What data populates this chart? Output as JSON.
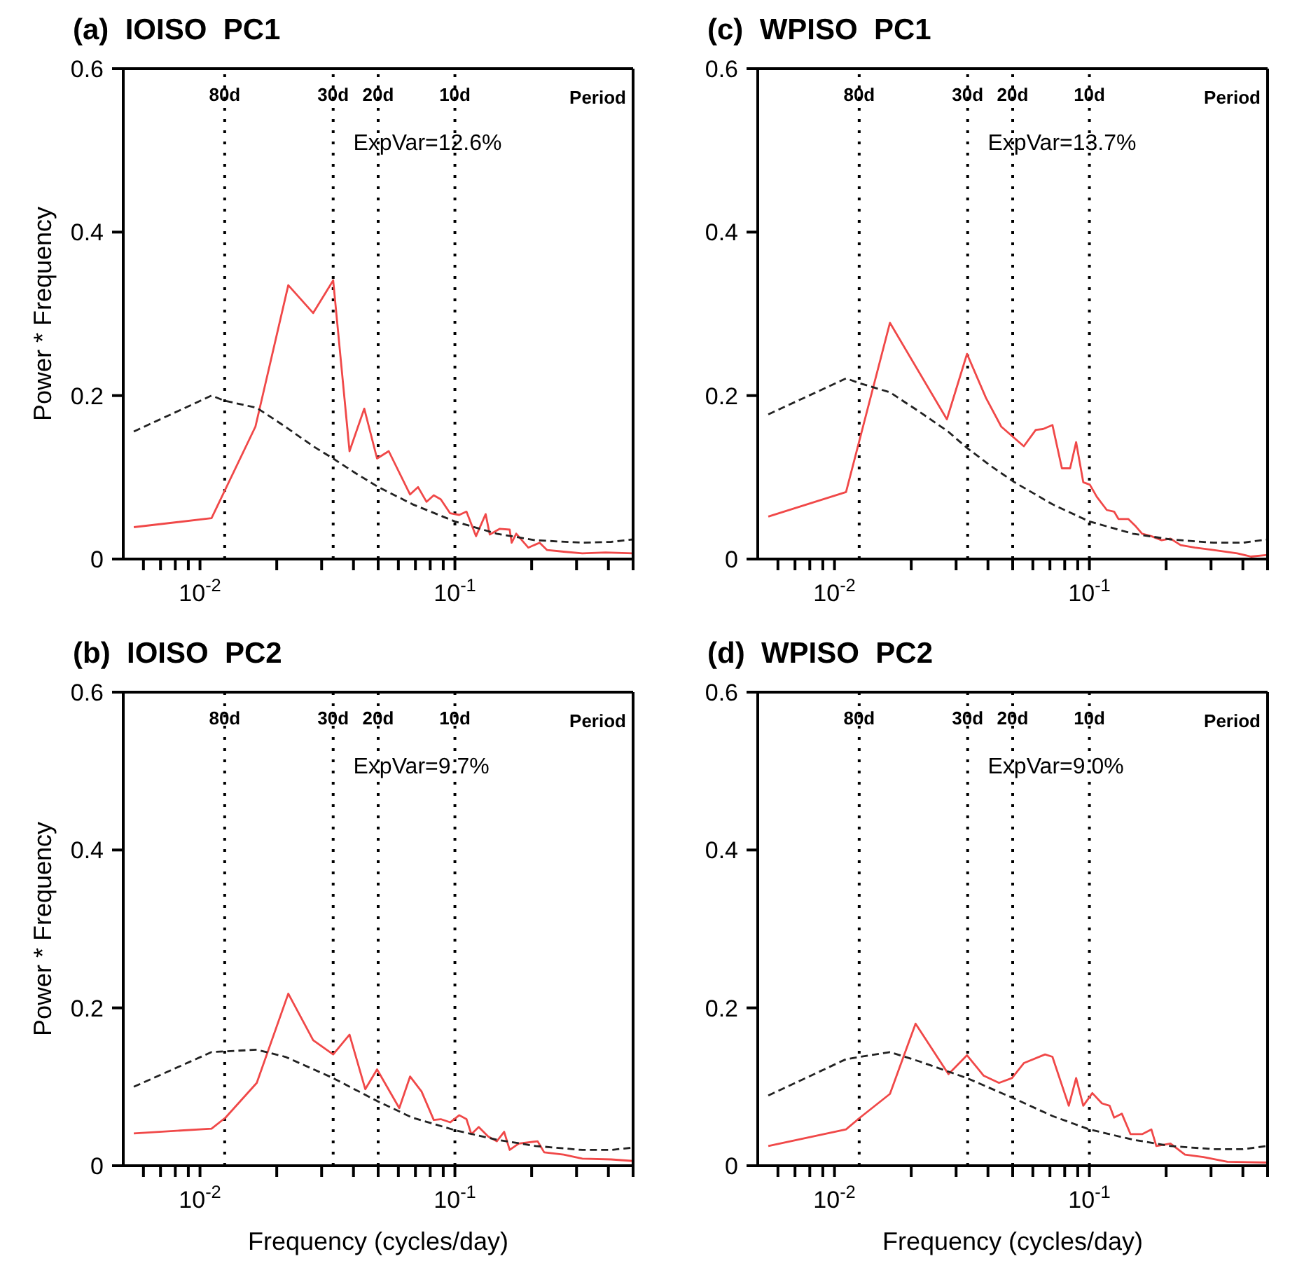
{
  "chart_data": [
    {
      "type": "line",
      "title": "(a)  IOISO  PC1",
      "ylabel": "Power * Frequency",
      "log": "x",
      "marker": "none",
      "xlim": [
        0.005,
        0.5
      ],
      "xticks": [
        {
          "value": 0.006,
          "label": null
        },
        {
          "value": 0.007,
          "label": null
        },
        {
          "value": 0.008,
          "label": null
        },
        {
          "value": 0.009,
          "label": null
        },
        {
          "value": 0.01,
          "label": "10$^{-2}$"
        },
        {
          "value": 0.02,
          "label": null
        },
        {
          "value": 0.03,
          "label": null
        },
        {
          "value": 0.04,
          "label": null
        },
        {
          "value": 0.05,
          "label": null
        },
        {
          "value": 0.06,
          "label": null
        },
        {
          "value": 0.07,
          "label": null
        },
        {
          "value": 0.08,
          "label": null
        },
        {
          "value": 0.09,
          "label": null
        },
        {
          "value": 0.1,
          "label": "10$^{-1}$"
        },
        {
          "value": 0.2,
          "label": null
        },
        {
          "value": 0.3,
          "label": null
        },
        {
          "value": 0.4,
          "label": null
        },
        {
          "value": 0.5,
          "label": null
        }
      ],
      "ylim": [
        0,
        0.6
      ],
      "yticks": [
        0,
        0.2,
        0.4,
        0.6
      ],
      "ref_lines": [
        {
          "axis": "x",
          "value": 0.0125,
          "label": "80d",
          "line_style": "dotted"
        },
        {
          "axis": "x",
          "value": 0.0333,
          "label": "30d",
          "line_style": "dotted"
        },
        {
          "axis": "x",
          "value": 0.05,
          "label": "20d",
          "line_style": "dotted"
        },
        {
          "axis": "x",
          "value": 0.1,
          "label": "10d",
          "line_style": "dotted"
        }
      ],
      "annotations": [
        "Period",
        "ExpVar=12.6%"
      ],
      "series": [
        {
          "color": "#f04848",
          "line_style": "solid",
          "x": [
            0.0055,
            0.0111,
            0.0165,
            0.0222,
            0.0278,
            0.0333,
            0.0386,
            0.0441,
            0.0495,
            0.055,
            0.0667,
            0.0717,
            0.0774,
            0.0826,
            0.088,
            0.0958,
            0.104,
            0.111,
            0.121,
            0.132,
            0.137,
            0.15,
            0.164,
            0.167,
            0.174,
            0.194,
            0.215,
            0.23,
            0.267,
            0.316,
            0.39,
            0.5
          ],
          "values": [
            0.039,
            0.05,
            0.162,
            0.335,
            0.301,
            0.341,
            0.132,
            0.184,
            0.123,
            0.132,
            0.079,
            0.088,
            0.07,
            0.078,
            0.073,
            0.056,
            0.054,
            0.058,
            0.028,
            0.055,
            0.03,
            0.037,
            0.036,
            0.02,
            0.031,
            0.014,
            0.02,
            0.011,
            0.009,
            0.007,
            0.008,
            0.007
          ]
        },
        {
          "color": "#222222",
          "line_style": "dashed",
          "x": [
            0.0055,
            0.0111,
            0.0124,
            0.0167,
            0.0216,
            0.0278,
            0.0333,
            0.0408,
            0.0495,
            0.0682,
            0.1,
            0.146,
            0.207,
            0.316,
            0.41,
            0.5
          ],
          "values": [
            0.156,
            0.2,
            0.194,
            0.185,
            0.162,
            0.138,
            0.123,
            0.105,
            0.089,
            0.067,
            0.046,
            0.031,
            0.023,
            0.02,
            0.021,
            0.024
          ]
        }
      ]
    },
    {
      "type": "line",
      "title": "(c)  WPISO  PC1",
      "log": "x",
      "marker": "none",
      "xlim": [
        0.005,
        0.5
      ],
      "xticks": [
        {
          "value": 0.006,
          "label": null
        },
        {
          "value": 0.007,
          "label": null
        },
        {
          "value": 0.008,
          "label": null
        },
        {
          "value": 0.009,
          "label": null
        },
        {
          "value": 0.01,
          "label": "10$^{-2}$"
        },
        {
          "value": 0.02,
          "label": null
        },
        {
          "value": 0.03,
          "label": null
        },
        {
          "value": 0.04,
          "label": null
        },
        {
          "value": 0.05,
          "label": null
        },
        {
          "value": 0.06,
          "label": null
        },
        {
          "value": 0.07,
          "label": null
        },
        {
          "value": 0.08,
          "label": null
        },
        {
          "value": 0.09,
          "label": null
        },
        {
          "value": 0.1,
          "label": "10$^{-1}$"
        },
        {
          "value": 0.2,
          "label": null
        },
        {
          "value": 0.3,
          "label": null
        },
        {
          "value": 0.4,
          "label": null
        },
        {
          "value": 0.5,
          "label": null
        }
      ],
      "ylim": [
        0,
        0.6
      ],
      "yticks": [
        0,
        0.2,
        0.4,
        0.6
      ],
      "ref_lines": [
        {
          "axis": "x",
          "value": 0.0125,
          "label": "80d",
          "line_style": "dotted"
        },
        {
          "axis": "x",
          "value": 0.0333,
          "label": "30d",
          "line_style": "dotted"
        },
        {
          "axis": "x",
          "value": 0.05,
          "label": "20d",
          "line_style": "dotted"
        },
        {
          "axis": "x",
          "value": 0.1,
          "label": "10d",
          "line_style": "dotted"
        }
      ],
      "annotations": [
        "Period",
        "ExpVar=13.7%"
      ],
      "series": [
        {
          "color": "#f04848",
          "line_style": "solid",
          "x": [
            0.0055,
            0.0111,
            0.0165,
            0.0276,
            0.0331,
            0.0393,
            0.0451,
            0.0553,
            0.0616,
            0.0657,
            0.0716,
            0.078,
            0.084,
            0.0887,
            0.0946,
            0.1004,
            0.107,
            0.117,
            0.125,
            0.13,
            0.142,
            0.152,
            0.161,
            0.175,
            0.192,
            0.208,
            0.228,
            0.259,
            0.307,
            0.38,
            0.43,
            0.5
          ],
          "values": [
            0.052,
            0.082,
            0.289,
            0.171,
            0.251,
            0.197,
            0.162,
            0.138,
            0.158,
            0.159,
            0.164,
            0.111,
            0.111,
            0.143,
            0.094,
            0.091,
            0.076,
            0.06,
            0.058,
            0.049,
            0.049,
            0.04,
            0.031,
            0.028,
            0.023,
            0.025,
            0.017,
            0.014,
            0.011,
            0.007,
            0.003,
            0.005
          ]
        },
        {
          "color": "#222222",
          "line_style": "dashed",
          "x": [
            0.0055,
            0.0111,
            0.0126,
            0.0165,
            0.0216,
            0.0279,
            0.0331,
            0.041,
            0.0508,
            0.0716,
            0.1,
            0.148,
            0.208,
            0.307,
            0.4,
            0.5
          ],
          "values": [
            0.177,
            0.221,
            0.215,
            0.204,
            0.18,
            0.156,
            0.136,
            0.114,
            0.094,
            0.067,
            0.046,
            0.031,
            0.024,
            0.02,
            0.02,
            0.024
          ]
        }
      ]
    },
    {
      "type": "line",
      "title": "(b)  IOISO  PC2",
      "xlabel": "Frequency (cycles/day)",
      "ylabel": "Power * Frequency",
      "log": "x",
      "marker": "none",
      "xlim": [
        0.005,
        0.5
      ],
      "xticks": [
        {
          "value": 0.006,
          "label": null
        },
        {
          "value": 0.007,
          "label": null
        },
        {
          "value": 0.008,
          "label": null
        },
        {
          "value": 0.009,
          "label": null
        },
        {
          "value": 0.01,
          "label": "10$^{-2}$"
        },
        {
          "value": 0.02,
          "label": null
        },
        {
          "value": 0.03,
          "label": null
        },
        {
          "value": 0.04,
          "label": null
        },
        {
          "value": 0.05,
          "label": null
        },
        {
          "value": 0.06,
          "label": null
        },
        {
          "value": 0.07,
          "label": null
        },
        {
          "value": 0.08,
          "label": null
        },
        {
          "value": 0.09,
          "label": null
        },
        {
          "value": 0.1,
          "label": "10$^{-1}$"
        },
        {
          "value": 0.2,
          "label": null
        },
        {
          "value": 0.3,
          "label": null
        },
        {
          "value": 0.4,
          "label": null
        },
        {
          "value": 0.5,
          "label": null
        }
      ],
      "ylim": [
        0,
        0.6
      ],
      "yticks": [
        0,
        0.2,
        0.4,
        0.6
      ],
      "ref_lines": [
        {
          "axis": "x",
          "value": 0.0125,
          "label": "80d",
          "line_style": "dotted"
        },
        {
          "axis": "x",
          "value": 0.0333,
          "label": "30d",
          "line_style": "dotted"
        },
        {
          "axis": "x",
          "value": 0.05,
          "label": "20d",
          "line_style": "dotted"
        },
        {
          "axis": "x",
          "value": 0.1,
          "label": "10d",
          "line_style": "dotted"
        }
      ],
      "annotations": [
        "Period",
        "ExpVar=9.7%"
      ],
      "series": [
        {
          "color": "#f04848",
          "line_style": "solid",
          "x": [
            0.0055,
            0.0111,
            0.0126,
            0.0167,
            0.0222,
            0.0278,
            0.0333,
            0.0386,
            0.0445,
            0.0495,
            0.0605,
            0.0667,
            0.074,
            0.0826,
            0.088,
            0.0958,
            0.104,
            0.111,
            0.116,
            0.124,
            0.135,
            0.146,
            0.156,
            0.164,
            0.178,
            0.211,
            0.224,
            0.267,
            0.316,
            0.41,
            0.5
          ],
          "values": [
            0.041,
            0.047,
            0.061,
            0.105,
            0.218,
            0.159,
            0.141,
            0.166,
            0.097,
            0.122,
            0.073,
            0.113,
            0.094,
            0.058,
            0.059,
            0.055,
            0.064,
            0.059,
            0.04,
            0.049,
            0.037,
            0.031,
            0.043,
            0.02,
            0.028,
            0.031,
            0.017,
            0.014,
            0.009,
            0.008,
            0.006
          ]
        },
        {
          "color": "#222222",
          "line_style": "dashed",
          "x": [
            0.0055,
            0.0111,
            0.0167,
            0.0216,
            0.0333,
            0.0495,
            0.068,
            0.1,
            0.146,
            0.207,
            0.316,
            0.41,
            0.5
          ],
          "values": [
            0.1,
            0.144,
            0.147,
            0.138,
            0.111,
            0.082,
            0.061,
            0.045,
            0.033,
            0.025,
            0.02,
            0.02,
            0.023
          ]
        }
      ]
    },
    {
      "type": "line",
      "title": "(d)  WPISO  PC2",
      "xlabel": "Frequency (cycles/day)",
      "log": "x",
      "marker": "none",
      "xlim": [
        0.005,
        0.5
      ],
      "xticks": [
        {
          "value": 0.006,
          "label": null
        },
        {
          "value": 0.007,
          "label": null
        },
        {
          "value": 0.008,
          "label": null
        },
        {
          "value": 0.009,
          "label": null
        },
        {
          "value": 0.01,
          "label": "10$^{-2}$"
        },
        {
          "value": 0.02,
          "label": null
        },
        {
          "value": 0.03,
          "label": null
        },
        {
          "value": 0.04,
          "label": null
        },
        {
          "value": 0.05,
          "label": null
        },
        {
          "value": 0.06,
          "label": null
        },
        {
          "value": 0.07,
          "label": null
        },
        {
          "value": 0.08,
          "label": null
        },
        {
          "value": 0.09,
          "label": null
        },
        {
          "value": 0.1,
          "label": "10$^{-1}$"
        },
        {
          "value": 0.2,
          "label": null
        },
        {
          "value": 0.3,
          "label": null
        },
        {
          "value": 0.4,
          "label": null
        },
        {
          "value": 0.5,
          "label": null
        }
      ],
      "ylim": [
        0,
        0.6
      ],
      "yticks": [
        0,
        0.2,
        0.4,
        0.6
      ],
      "ref_lines": [
        {
          "axis": "x",
          "value": 0.0125,
          "label": "80d",
          "line_style": "dotted"
        },
        {
          "axis": "x",
          "value": 0.0333,
          "label": "30d",
          "line_style": "dotted"
        },
        {
          "axis": "x",
          "value": 0.05,
          "label": "20d",
          "line_style": "dotted"
        },
        {
          "axis": "x",
          "value": 0.1,
          "label": "10d",
          "line_style": "dotted"
        }
      ],
      "annotations": [
        "Period",
        "ExpVar=9.0%"
      ],
      "series": [
        {
          "color": "#f04848",
          "line_style": "solid",
          "x": [
            0.0055,
            0.0111,
            0.0126,
            0.0165,
            0.0208,
            0.028,
            0.0331,
            0.0385,
            0.0442,
            0.0497,
            0.0553,
            0.067,
            0.0716,
            0.083,
            0.0887,
            0.0946,
            0.1027,
            0.112,
            0.12,
            0.125,
            0.134,
            0.145,
            0.161,
            0.175,
            0.183,
            0.208,
            0.237,
            0.28,
            0.348,
            0.5
          ],
          "values": [
            0.025,
            0.046,
            0.061,
            0.091,
            0.18,
            0.116,
            0.14,
            0.114,
            0.105,
            0.111,
            0.13,
            0.141,
            0.138,
            0.076,
            0.111,
            0.076,
            0.092,
            0.079,
            0.076,
            0.061,
            0.066,
            0.04,
            0.04,
            0.046,
            0.025,
            0.028,
            0.014,
            0.011,
            0.005,
            0.004
          ]
        },
        {
          "color": "#222222",
          "line_style": "dashed",
          "x": [
            0.0055,
            0.0111,
            0.0165,
            0.0216,
            0.0331,
            0.0508,
            0.0716,
            0.1,
            0.148,
            0.208,
            0.307,
            0.4,
            0.5
          ],
          "values": [
            0.089,
            0.135,
            0.144,
            0.132,
            0.111,
            0.085,
            0.063,
            0.046,
            0.033,
            0.025,
            0.021,
            0.021,
            0.025
          ]
        }
      ]
    }
  ]
}
